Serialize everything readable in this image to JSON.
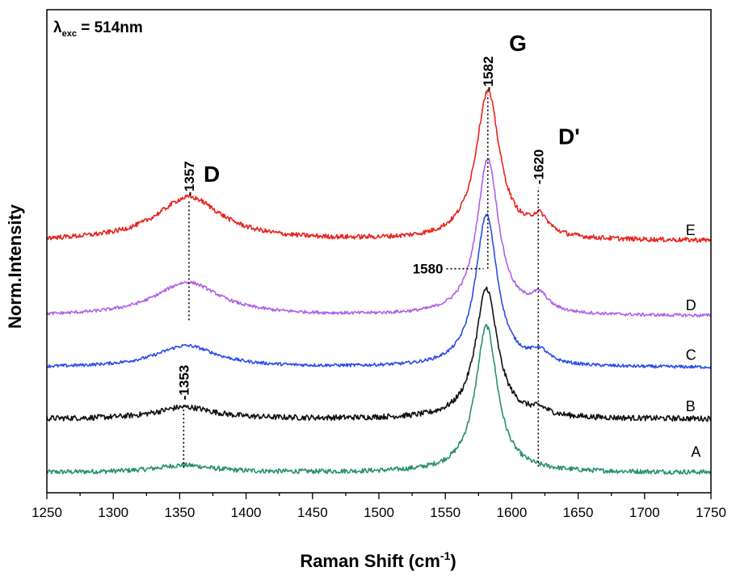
{
  "chart_data": {
    "type": "line",
    "excitation": {
      "symbol": "λ",
      "sub": "exc",
      "text": " = 514nm"
    },
    "xlabel": {
      "main": "Raman Shift (cm",
      "sup": "-1",
      "close": ")"
    },
    "ylabel": "Norm.Intensity",
    "xlim": [
      1250,
      1750
    ],
    "xticks": [
      1250,
      1300,
      1350,
      1400,
      1450,
      1500,
      1550,
      1600,
      1650,
      1700,
      1750
    ],
    "band_labels": [
      {
        "text": "D",
        "x": 1368,
        "level": 0.735
      },
      {
        "text": "G",
        "x": 1598,
        "level": 1.065
      },
      {
        "text": "D'",
        "x": 1635,
        "level": 0.83
      }
    ],
    "peak_labels": [
      {
        "text": "1357",
        "x": 1357,
        "from_level": 0.385,
        "to_level": 0.69,
        "vertical_text": true
      },
      {
        "text": "1582",
        "x": 1582,
        "from_level": 0.515,
        "to_level": 0.955,
        "vertical_text": true
      },
      {
        "text": "1620",
        "x": 1620,
        "from_level": 0.015,
        "to_level": 0.72,
        "vertical_text": true
      },
      {
        "text": "1353",
        "x": 1353,
        "from_level": 0.012,
        "to_level": 0.175,
        "vertical_text": true
      },
      {
        "text": "1580",
        "x": 1580,
        "from_level": 0.515,
        "to_level": 0.515,
        "vertical_text": false
      }
    ],
    "series": [
      {
        "name": "A",
        "color": "#2a9070",
        "baseline": 0.0,
        "d_pos": 1353,
        "d_height": 0.018,
        "d_width": 26,
        "g_pos": 1581,
        "g_height": 0.37,
        "g_width": 10,
        "dp_height": 0.0,
        "noise": 0.006,
        "label_x": 1735,
        "label_level": 0.04
      },
      {
        "name": "B",
        "color": "#111111",
        "baseline": 0.135,
        "d_pos": 1354,
        "d_height": 0.03,
        "d_width": 26,
        "g_pos": 1581,
        "g_height": 0.33,
        "g_width": 10,
        "dp_height": 0.015,
        "noise": 0.007,
        "label_x": 1731,
        "label_level": 0.155
      },
      {
        "name": "C",
        "color": "#2a4ee8",
        "baseline": 0.265,
        "d_pos": 1355,
        "d_height": 0.055,
        "d_width": 28,
        "g_pos": 1581,
        "g_height": 0.385,
        "g_width": 10,
        "dp_height": 0.03,
        "noise": 0.004,
        "label_x": 1731,
        "label_level": 0.285
      },
      {
        "name": "D",
        "color": "#b260e6",
        "baseline": 0.395,
        "d_pos": 1356,
        "d_height": 0.085,
        "d_width": 30,
        "g_pos": 1582,
        "g_height": 0.395,
        "g_width": 10,
        "dp_height": 0.04,
        "noise": 0.004,
        "label_x": 1731,
        "label_level": 0.41
      },
      {
        "name": "E",
        "color": "#e8241e",
        "baseline": 0.585,
        "d_pos": 1357,
        "d_height": 0.11,
        "d_width": 30,
        "g_pos": 1582,
        "g_height": 0.375,
        "g_width": 11,
        "dp_height": 0.045,
        "noise": 0.006,
        "label_x": 1731,
        "label_level": 0.6
      }
    ]
  }
}
